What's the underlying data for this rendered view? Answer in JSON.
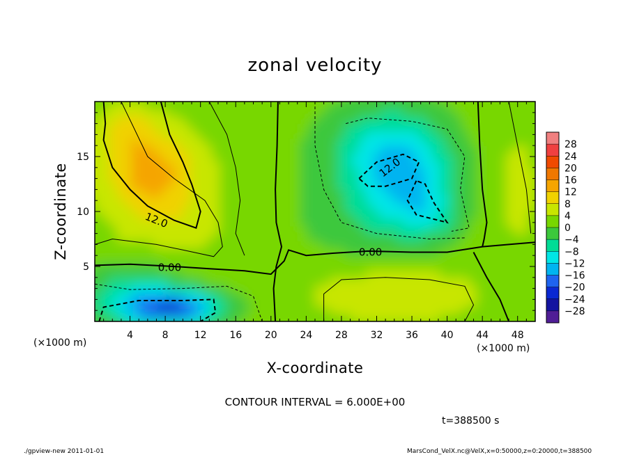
{
  "chart_data": {
    "type": "heatmap",
    "title": "zonal velocity",
    "xlabel": "X-coordinate",
    "ylabel": "Z-coordinate",
    "x_unit": "(×1000 m)",
    "z_unit": "(×1000 m)",
    "xlim": [
      0,
      50
    ],
    "ylim": [
      0,
      20
    ],
    "x_ticks": [
      4,
      8,
      12,
      16,
      20,
      24,
      28,
      32,
      36,
      40,
      44,
      48
    ],
    "y_ticks": [
      5,
      10,
      15
    ],
    "colorbar": {
      "labels": [
        "28",
        "24",
        "20",
        "16",
        "12",
        "8",
        "4",
        "0",
        "-4",
        "-8",
        "-12",
        "-16",
        "-20",
        "-24",
        "-28"
      ],
      "display_labels": [
        "28",
        "24",
        "20",
        "16",
        "12",
        "8",
        "4",
        "0",
        "−4",
        "−8",
        "−12",
        "−16",
        "−20",
        "−24",
        "−28"
      ],
      "levels": [
        30,
        26,
        22,
        18,
        14,
        10,
        6,
        2,
        -2,
        -6,
        -10,
        -14,
        -18,
        -22,
        -26,
        -30
      ],
      "colors": [
        "#f08080",
        "#f04040",
        "#f04a00",
        "#f07800",
        "#f5a500",
        "#f0d200",
        "#c8e600",
        "#78d700",
        "#3cc83c",
        "#00dc96",
        "#00e6e6",
        "#00b4f0",
        "#1e64f0",
        "#0a28d2",
        "#1414a0",
        "#501e96"
      ]
    },
    "contour_labels": [
      {
        "text": "12.0",
        "x": 7.0,
        "z": 9.2,
        "angle": 22
      },
      {
        "text": "0.00",
        "x": 8.5,
        "z": 4.9,
        "angle": 0
      },
      {
        "text": "0.00",
        "x": 31.3,
        "z": 6.3,
        "angle": 0
      },
      {
        "text": "12.0",
        "x": 33.5,
        "z": 14.0,
        "angle": -38
      }
    ],
    "contour_interval_text": "CONTOUR INTERVAL = 6.000E+00",
    "time_text": "t=388500 s"
  },
  "footer": {
    "left": "./gpview-new 2011-01-01",
    "right": "MarsCond_VelX.nc@VelX,x=0:50000,z=0:20000,t=388500"
  }
}
